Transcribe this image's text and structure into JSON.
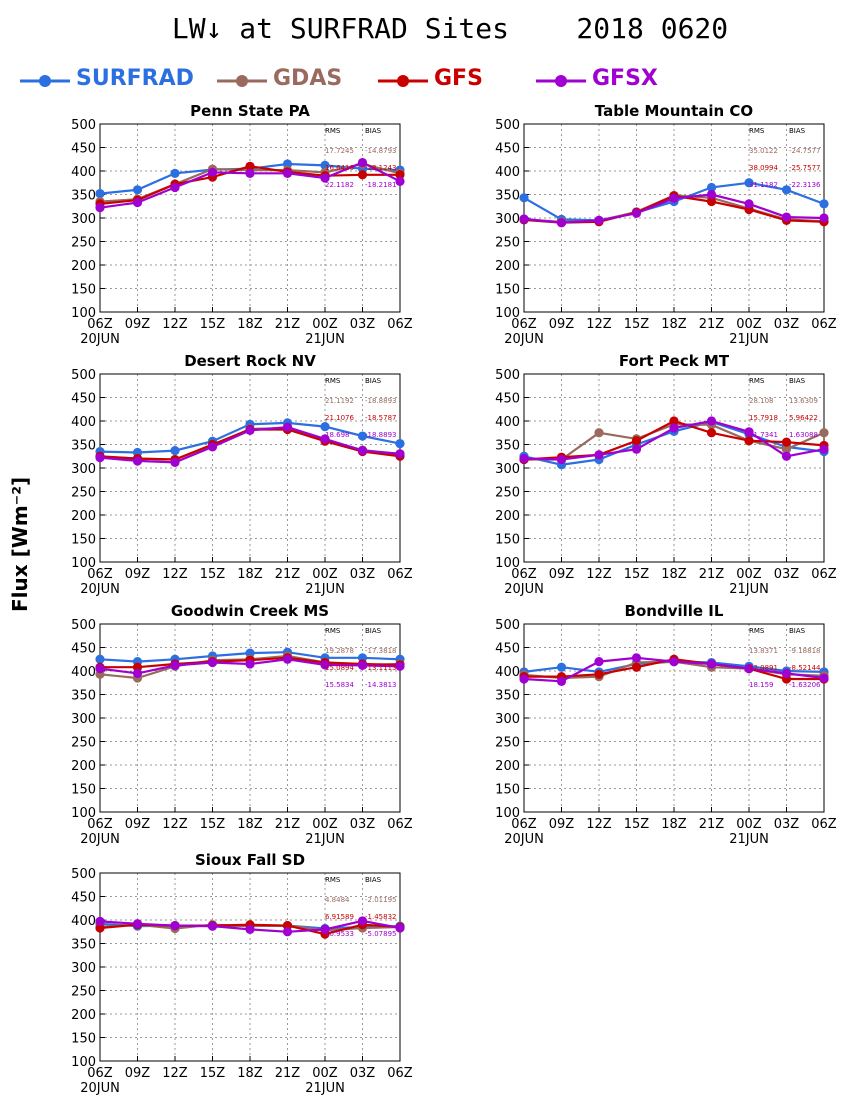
{
  "page": {
    "title": "LW↓ at SURFRAD Sites    2018 0620",
    "ylabel": "Flux [Wm⁻²]",
    "colors": {
      "SURFRAD": "#2b6fe0",
      "GDAS": "#9a6a5e",
      "GFS": "#c80000",
      "GFSX": "#a000d0"
    }
  },
  "legend": [
    {
      "name": "SURFRAD",
      "color": "#2b6fe0"
    },
    {
      "name": "GDAS",
      "color": "#9a6a5e"
    },
    {
      "name": "GFS",
      "color": "#c80000"
    },
    {
      "name": "GFSX",
      "color": "#a000d0"
    }
  ],
  "chart_data": [
    {
      "type": "line",
      "title": "Penn State PA",
      "x": [
        "06Z",
        "09Z",
        "12Z",
        "15Z",
        "18Z",
        "21Z",
        "00Z",
        "03Z",
        "06Z"
      ],
      "date_labels": [
        "20JUN",
        "21JUN"
      ],
      "ylim": [
        100,
        500
      ],
      "yticks": [
        100,
        150,
        200,
        250,
        300,
        350,
        400,
        450,
        500
      ],
      "grid": true,
      "stats_header": [
        "RMS",
        "BIAS"
      ],
      "stats": [
        {
          "series": "GDAS",
          "rms": "17.7245",
          "bias": "-14.8793"
        },
        {
          "series": "GFS",
          "rms": "16.6416",
          "bias": "-18.1243"
        },
        {
          "series": "GFSX",
          "rms": "22.1182",
          "bias": "-18.2181"
        }
      ],
      "series": [
        {
          "name": "SURFRAD",
          "values": [
            352,
            360,
            395,
            403,
            405,
            415,
            412,
            405,
            402
          ]
        },
        {
          "name": "GDAS",
          "values": [
            335,
            340,
            372,
            404,
            402,
            402,
            397,
            415,
            395
          ]
        },
        {
          "name": "GFS",
          "values": [
            330,
            338,
            372,
            387,
            410,
            398,
            390,
            392,
            392
          ]
        },
        {
          "name": "GFSX",
          "values": [
            322,
            333,
            365,
            397,
            395,
            395,
            385,
            418,
            378
          ]
        }
      ]
    },
    {
      "type": "line",
      "title": "Table Mountain CO",
      "x": [
        "06Z",
        "09Z",
        "12Z",
        "15Z",
        "18Z",
        "21Z",
        "00Z",
        "03Z",
        "06Z"
      ],
      "date_labels": [
        "20JUN",
        "21JUN"
      ],
      "ylim": [
        100,
        500
      ],
      "yticks": [
        100,
        150,
        200,
        250,
        300,
        350,
        400,
        450,
        500
      ],
      "grid": true,
      "stats_header": [
        "RMS",
        "BIAS"
      ],
      "stats": [
        {
          "series": "GDAS",
          "rms": "35.0122",
          "bias": "-24.7577"
        },
        {
          "series": "GFS",
          "rms": "38.0994",
          "bias": "-25.7577"
        },
        {
          "series": "GFSX",
          "rms": "31.1182",
          "bias": "-22.3136"
        }
      ],
      "series": [
        {
          "name": "SURFRAD",
          "values": [
            343,
            297,
            295,
            312,
            335,
            365,
            375,
            360,
            330
          ]
        },
        {
          "name": "GDAS",
          "values": [
            297,
            292,
            294,
            313,
            348,
            343,
            320,
            297,
            293
          ]
        },
        {
          "name": "GFS",
          "values": [
            296,
            290,
            292,
            312,
            347,
            335,
            318,
            295,
            292
          ]
        },
        {
          "name": "GFSX",
          "values": [
            298,
            290,
            295,
            310,
            342,
            350,
            330,
            302,
            300
          ]
        }
      ]
    },
    {
      "type": "line",
      "title": "Desert Rock NV",
      "x": [
        "06Z",
        "09Z",
        "12Z",
        "15Z",
        "18Z",
        "21Z",
        "00Z",
        "03Z",
        "06Z"
      ],
      "date_labels": [
        "20JUN",
        "21JUN"
      ],
      "ylim": [
        100,
        500
      ],
      "yticks": [
        100,
        150,
        200,
        250,
        300,
        350,
        400,
        450,
        500
      ],
      "grid": true,
      "stats_header": [
        "RMS",
        "BIAS"
      ],
      "stats": [
        {
          "series": "GDAS",
          "rms": "21.1192",
          "bias": "-18.8893"
        },
        {
          "series": "GFS",
          "rms": "21.1076",
          "bias": "-18.5787"
        },
        {
          "series": "GFSX",
          "rms": "18.698",
          "bias": "-18.8893"
        }
      ],
      "series": [
        {
          "name": "SURFRAD",
          "values": [
            335,
            333,
            337,
            357,
            393,
            396,
            388,
            368,
            352
          ]
        },
        {
          "name": "GDAS",
          "values": [
            324,
            320,
            318,
            348,
            383,
            385,
            360,
            338,
            330
          ]
        },
        {
          "name": "GFS",
          "values": [
            325,
            320,
            318,
            350,
            382,
            382,
            357,
            335,
            325
          ]
        },
        {
          "name": "GFSX",
          "values": [
            322,
            315,
            312,
            345,
            380,
            387,
            362,
            337,
            330
          ]
        }
      ]
    },
    {
      "type": "line",
      "title": "Fort Peck MT",
      "x": [
        "06Z",
        "09Z",
        "12Z",
        "15Z",
        "18Z",
        "21Z",
        "00Z",
        "03Z",
        "06Z"
      ],
      "date_labels": [
        "20JUN",
        "21JUN"
      ],
      "ylim": [
        100,
        500
      ],
      "yticks": [
        100,
        150,
        200,
        250,
        300,
        350,
        400,
        450,
        500
      ],
      "grid": true,
      "stats_header": [
        "RMS",
        "BIAS"
      ],
      "stats": [
        {
          "series": "GDAS",
          "rms": "28.108",
          "bias": "13.6309"
        },
        {
          "series": "GFS",
          "rms": "15.7918",
          "bias": "5.96422"
        },
        {
          "series": "GFSX",
          "rms": "11.7341",
          "bias": "1.63088"
        }
      ],
      "series": [
        {
          "name": "SURFRAD",
          "values": [
            325,
            307,
            318,
            350,
            378,
            398,
            372,
            345,
            335
          ]
        },
        {
          "name": "GDAS",
          "values": [
            318,
            318,
            375,
            362,
            393,
            392,
            358,
            340,
            375
          ]
        },
        {
          "name": "GFS",
          "values": [
            318,
            323,
            328,
            358,
            400,
            375,
            358,
            355,
            348
          ]
        },
        {
          "name": "GFSX",
          "values": [
            320,
            318,
            328,
            340,
            385,
            400,
            377,
            325,
            340
          ]
        }
      ]
    },
    {
      "type": "line",
      "title": "Goodwin Creek MS",
      "x": [
        "06Z",
        "09Z",
        "12Z",
        "15Z",
        "18Z",
        "21Z",
        "00Z",
        "03Z",
        "06Z"
      ],
      "date_labels": [
        "20JUN",
        "21JUN"
      ],
      "ylim": [
        100,
        500
      ],
      "yticks": [
        100,
        150,
        200,
        250,
        300,
        350,
        400,
        450,
        500
      ],
      "grid": true,
      "stats_header": [
        "RMS",
        "BIAS"
      ],
      "stats": [
        {
          "series": "GDAS",
          "rms": "19.2878",
          "bias": "-17.3818"
        },
        {
          "series": "GFS",
          "rms": "15.0894",
          "bias": "-13.1113"
        },
        {
          "series": "GFSX",
          "rms": "15.5834",
          "bias": "-14.3813"
        }
      ],
      "series": [
        {
          "name": "SURFRAD",
          "values": [
            425,
            420,
            425,
            432,
            438,
            440,
            428,
            428,
            425
          ]
        },
        {
          "name": "GDAS",
          "values": [
            393,
            385,
            410,
            423,
            425,
            432,
            418,
            413,
            415
          ]
        },
        {
          "name": "GFS",
          "values": [
            408,
            408,
            415,
            420,
            423,
            428,
            418,
            415,
            413
          ]
        },
        {
          "name": "GFSX",
          "values": [
            405,
            395,
            412,
            418,
            415,
            425,
            413,
            412,
            410
          ]
        }
      ]
    },
    {
      "type": "line",
      "title": "Bondville IL",
      "x": [
        "06Z",
        "09Z",
        "12Z",
        "15Z",
        "18Z",
        "21Z",
        "00Z",
        "03Z",
        "06Z"
      ],
      "date_labels": [
        "20JUN",
        "21JUN"
      ],
      "ylim": [
        100,
        500
      ],
      "yticks": [
        100,
        150,
        200,
        250,
        300,
        350,
        400,
        450,
        500
      ],
      "grid": true,
      "stats_header": [
        "RMS",
        "BIAS"
      ],
      "stats": [
        {
          "series": "GDAS",
          "rms": "13.8371",
          "bias": "-9.18818"
        },
        {
          "series": "GFS",
          "rms": "12.0891",
          "bias": "-8.52144"
        },
        {
          "series": "GFSX",
          "rms": "18.159",
          "bias": "-1.63206"
        }
      ],
      "series": [
        {
          "name": "SURFRAD",
          "values": [
            398,
            408,
            398,
            415,
            420,
            418,
            410,
            400,
            398
          ]
        },
        {
          "name": "GDAS",
          "values": [
            392,
            385,
            388,
            418,
            420,
            408,
            405,
            393,
            390
          ]
        },
        {
          "name": "GFS",
          "values": [
            388,
            388,
            393,
            408,
            425,
            415,
            405,
            383,
            383
          ]
        },
        {
          "name": "GFSX",
          "values": [
            383,
            378,
            420,
            428,
            420,
            415,
            405,
            395,
            385
          ]
        }
      ]
    },
    {
      "type": "line",
      "title": "Sioux Fall SD",
      "x": [
        "06Z",
        "09Z",
        "12Z",
        "15Z",
        "18Z",
        "21Z",
        "00Z",
        "03Z",
        "06Z"
      ],
      "date_labels": [
        "20JUN",
        "21JUN"
      ],
      "ylim": [
        100,
        500
      ],
      "yticks": [
        100,
        150,
        200,
        250,
        300,
        350,
        400,
        450,
        500
      ],
      "grid": true,
      "stats_header": [
        "RMS",
        "BIAS"
      ],
      "stats": [
        {
          "series": "GDAS",
          "rms": "4.8484",
          "bias": "-2.01195"
        },
        {
          "series": "GFS",
          "rms": "6.91589",
          "bias": "-1.45832"
        },
        {
          "series": "GFSX",
          "rms": "10.9533",
          "bias": "-5.07895"
        }
      ],
      "series": [
        {
          "name": "SURFRAD",
          "values": [
            392,
            387,
            388,
            387,
            388,
            388,
            382,
            385,
            387
          ]
        },
        {
          "name": "GDAS",
          "values": [
            385,
            390,
            382,
            390,
            387,
            388,
            378,
            383,
            385
          ]
        },
        {
          "name": "GFS",
          "values": [
            383,
            390,
            388,
            388,
            390,
            388,
            370,
            390,
            385
          ]
        },
        {
          "name": "GFSX",
          "values": [
            397,
            392,
            388,
            387,
            380,
            375,
            380,
            398,
            383
          ]
        }
      ]
    }
  ]
}
